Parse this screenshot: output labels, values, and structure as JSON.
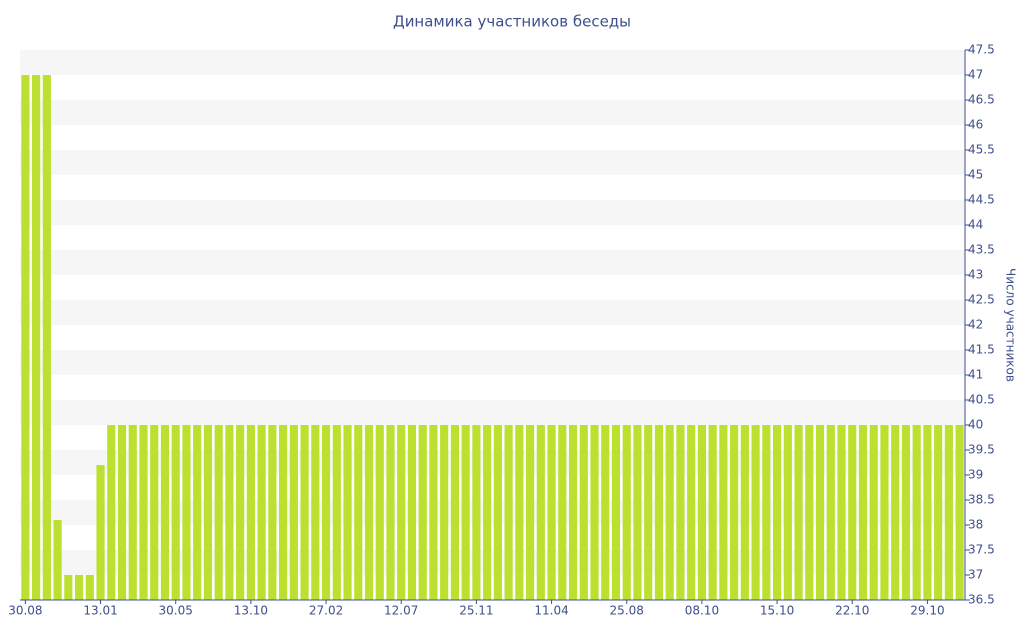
{
  "chart_data": {
    "type": "bar",
    "title": "Динамика участников беседы",
    "y_label": "Число участников",
    "color": "#bbe02f",
    "axis_side": "right",
    "grid": true,
    "categories": [
      "30.08",
      null,
      null,
      null,
      null,
      null,
      null,
      "13.01",
      null,
      null,
      null,
      null,
      null,
      null,
      "30.05",
      null,
      null,
      null,
      null,
      null,
      null,
      "13.10",
      null,
      null,
      null,
      null,
      null,
      null,
      "27.02",
      null,
      null,
      null,
      null,
      null,
      null,
      "12.07",
      null,
      null,
      null,
      null,
      null,
      null,
      "25.11",
      null,
      null,
      null,
      null,
      null,
      null,
      "11.04",
      null,
      null,
      null,
      null,
      null,
      null,
      "25.08",
      null,
      null,
      null,
      null,
      null,
      null,
      "08.10",
      null,
      null,
      null,
      null,
      null,
      null,
      "15.10",
      null,
      null,
      null,
      null,
      null,
      null,
      "22.10",
      null,
      null,
      null,
      null,
      null,
      null,
      "29.10",
      null,
      null,
      null
    ],
    "values": [
      47,
      47,
      47,
      38.1,
      37,
      37,
      37,
      39.2,
      40,
      40,
      40,
      40,
      40,
      40,
      40,
      40,
      40,
      40,
      40,
      40,
      40,
      40,
      40,
      40,
      40,
      40,
      40,
      40,
      40,
      40,
      40,
      40,
      40,
      40,
      40,
      40,
      40,
      40,
      40,
      40,
      40,
      40,
      40,
      40,
      40,
      40,
      40,
      40,
      40,
      40,
      40,
      40,
      40,
      40,
      40,
      40,
      40,
      40,
      40,
      40,
      40,
      40,
      40,
      40,
      40,
      40,
      40,
      40,
      40,
      40,
      40,
      40,
      40,
      40,
      40,
      40,
      40,
      40,
      40,
      40,
      40,
      40,
      40,
      40,
      40,
      40,
      40,
      40
    ],
    "ylim": [
      36.5,
      47.5
    ],
    "yticks": [
      36.5,
      37,
      37.5,
      38,
      38.5,
      39,
      39.5,
      40,
      40.5,
      41,
      41.5,
      42,
      42.5,
      43,
      43.5,
      44,
      44.5,
      45,
      45.5,
      46,
      46.5,
      47,
      47.5
    ]
  }
}
